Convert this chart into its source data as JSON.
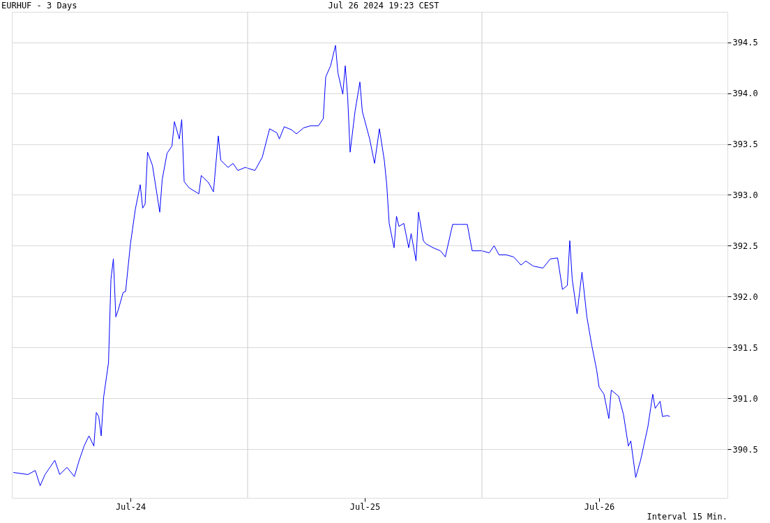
{
  "chart_data": {
    "type": "line",
    "title": "EURHUF - 3 Days",
    "annotations": [
      "Jul 26 2024 19:23 CEST",
      "Interval 15 Min."
    ],
    "x": [
      "2024-07-24T00:00",
      "2024-07-24T01:30",
      "2024-07-24T02:15",
      "2024-07-24T02:45",
      "2024-07-24T03:15",
      "2024-07-24T04:15",
      "2024-07-24T04:45",
      "2024-07-24T05:30",
      "2024-07-24T06:15",
      "2024-07-24T06:45",
      "2024-07-24T07:15",
      "2024-07-24T07:45",
      "2024-07-24T08:15",
      "2024-07-24T08:30",
      "2024-07-24T08:45",
      "2024-07-24T09:00",
      "2024-07-24T09:15",
      "2024-07-24T09:45",
      "2024-07-24T10:00",
      "2024-07-24T10:15",
      "2024-07-24T10:30",
      "2024-07-24T10:45",
      "2024-07-24T11:15",
      "2024-07-24T11:30",
      "2024-07-24T12:00",
      "2024-07-24T12:30",
      "2024-07-24T13:00",
      "2024-07-24T13:15",
      "2024-07-24T13:30",
      "2024-07-24T13:45",
      "2024-07-24T14:15",
      "2024-07-24T15:00",
      "2024-07-24T15:15",
      "2024-07-24T15:45",
      "2024-07-24T16:15",
      "2024-07-24T16:30",
      "2024-07-24T17:00",
      "2024-07-24T17:15",
      "2024-07-24T17:30",
      "2024-07-24T18:00",
      "2024-07-24T19:00",
      "2024-07-24T19:15",
      "2024-07-24T20:00",
      "2024-07-24T20:30",
      "2024-07-24T21:00",
      "2024-07-24T21:15",
      "2024-07-24T22:00",
      "2024-07-24T22:30",
      "2024-07-24T23:00",
      "2024-07-24T23:45",
      "2024-07-25T00:45",
      "2024-07-25T01:30",
      "2024-07-25T02:15",
      "2024-07-25T03:00",
      "2024-07-25T03:15",
      "2024-07-25T03:45",
      "2024-07-25T04:30",
      "2024-07-25T05:00",
      "2024-07-25T05:45",
      "2024-07-25T06:30",
      "2024-07-25T07:15",
      "2024-07-25T07:45",
      "2024-07-25T08:00",
      "2024-07-25T08:30",
      "2024-07-25T09:00",
      "2024-07-25T09:15",
      "2024-07-25T09:45",
      "2024-07-25T10:00",
      "2024-07-25T10:15",
      "2024-07-25T10:30",
      "2024-07-25T11:00",
      "2024-07-25T11:30",
      "2024-07-25T11:45",
      "2024-07-25T12:30",
      "2024-07-25T13:00",
      "2024-07-25T13:30",
      "2024-07-25T14:00",
      "2024-07-25T14:15",
      "2024-07-25T14:30",
      "2024-07-25T15:00",
      "2024-07-25T15:15",
      "2024-07-25T15:30",
      "2024-07-25T16:00",
      "2024-07-25T16:30",
      "2024-07-25T16:45",
      "2024-07-25T17:15",
      "2024-07-25T17:30",
      "2024-07-25T18:00",
      "2024-07-25T18:15",
      "2024-07-25T19:00",
      "2024-07-25T19:45",
      "2024-07-25T20:15",
      "2024-07-25T21:00",
      "2024-07-25T21:45",
      "2024-07-25T22:30",
      "2024-07-25T23:00",
      "2024-07-26T00:00",
      "2024-07-26T00:45",
      "2024-07-26T01:15",
      "2024-07-26T01:45",
      "2024-07-26T02:30",
      "2024-07-26T03:15",
      "2024-07-26T04:00",
      "2024-07-26T04:30",
      "2024-07-26T05:15",
      "2024-07-26T06:15",
      "2024-07-26T07:00",
      "2024-07-26T07:45",
      "2024-07-26T08:15",
      "2024-07-26T08:45",
      "2024-07-26T09:00",
      "2024-07-26T09:15",
      "2024-07-26T09:45",
      "2024-07-26T10:00",
      "2024-07-26T10:15",
      "2024-07-26T10:45",
      "2024-07-26T11:15",
      "2024-07-26T11:45",
      "2024-07-26T12:00",
      "2024-07-26T12:30",
      "2024-07-26T13:00",
      "2024-07-26T13:15",
      "2024-07-26T14:00",
      "2024-07-26T14:30",
      "2024-07-26T15:00",
      "2024-07-26T15:15",
      "2024-07-26T15:45",
      "2024-07-26T16:15",
      "2024-07-26T16:45",
      "2024-07-26T17:00",
      "2024-07-26T17:30",
      "2024-07-26T17:45",
      "2024-07-26T18:15",
      "2024-07-26T18:30",
      "2024-07-26T19:00",
      "2024-07-26T19:15"
    ],
    "series": [
      {
        "color": "#0000ff",
        "values": [
          390.27,
          390.25,
          390.29,
          390.14,
          390.25,
          390.39,
          390.25,
          390.32,
          390.23,
          390.39,
          390.53,
          390.63,
          390.53,
          390.86,
          390.82,
          390.63,
          391.01,
          391.35,
          392.17,
          392.37,
          391.8,
          391.87,
          392.04,
          392.05,
          392.52,
          392.86,
          393.1,
          392.87,
          392.91,
          393.42,
          393.29,
          392.83,
          393.15,
          393.41,
          393.48,
          393.72,
          393.55,
          393.74,
          393.13,
          393.07,
          393.01,
          393.19,
          393.12,
          393.03,
          393.58,
          393.34,
          393.27,
          393.31,
          393.24,
          393.27,
          393.24,
          393.37,
          393.65,
          393.61,
          393.55,
          393.67,
          393.64,
          393.6,
          393.66,
          393.68,
          393.68,
          393.75,
          394.16,
          394.27,
          394.47,
          394.2,
          393.99,
          394.27,
          393.96,
          393.42,
          393.82,
          394.11,
          393.82,
          393.55,
          393.31,
          393.65,
          393.34,
          393.1,
          392.72,
          392.48,
          392.79,
          392.69,
          392.72,
          392.48,
          392.62,
          392.35,
          392.83,
          392.55,
          392.52,
          392.48,
          392.45,
          392.39,
          392.71,
          392.71,
          392.71,
          392.45,
          392.45,
          392.43,
          392.5,
          392.41,
          392.41,
          392.39,
          392.31,
          392.35,
          392.3,
          392.28,
          392.37,
          392.38,
          392.07,
          392.11,
          392.55,
          392.17,
          391.83,
          392.04,
          392.24,
          391.8,
          391.52,
          391.28,
          391.11,
          391.04,
          390.8,
          391.08,
          391.02,
          390.84,
          390.53,
          390.58,
          390.22,
          390.39,
          390.61,
          390.72,
          391.04,
          390.9,
          390.97,
          390.82,
          390.83,
          390.82
        ]
      }
    ],
    "xlim": [
      "2024-07-23T23:51",
      "2024-07-27T01:09"
    ],
    "xticks": [
      {
        "value": "2024-07-24T12:00",
        "label": "Jul-24"
      },
      {
        "value": "2024-07-25T12:00",
        "label": "Jul-25"
      },
      {
        "value": "2024-07-26T12:00",
        "label": "Jul-26"
      }
    ],
    "ylim": [
      390.02,
      394.8
    ],
    "yticks": [
      {
        "value": 390.5,
        "label": "390.5"
      },
      {
        "value": 391,
        "label": "391.0"
      },
      {
        "value": 391.5,
        "label": "391.5"
      },
      {
        "value": 392,
        "label": "392.0"
      },
      {
        "value": 392.5,
        "label": "392.5"
      },
      {
        "value": 393,
        "label": "393.0"
      },
      {
        "value": 393.5,
        "label": "393.5"
      },
      {
        "value": 394,
        "label": "394.0"
      },
      {
        "value": 394.5,
        "label": "394.5"
      }
    ],
    "ref_lines": [
      {
        "axis": "x",
        "value": "2024-07-25T00:00",
        "color": "#cccccc"
      },
      {
        "axis": "x",
        "value": "2024-07-26T00:00",
        "color": "#cccccc"
      }
    ],
    "grid": "y"
  }
}
